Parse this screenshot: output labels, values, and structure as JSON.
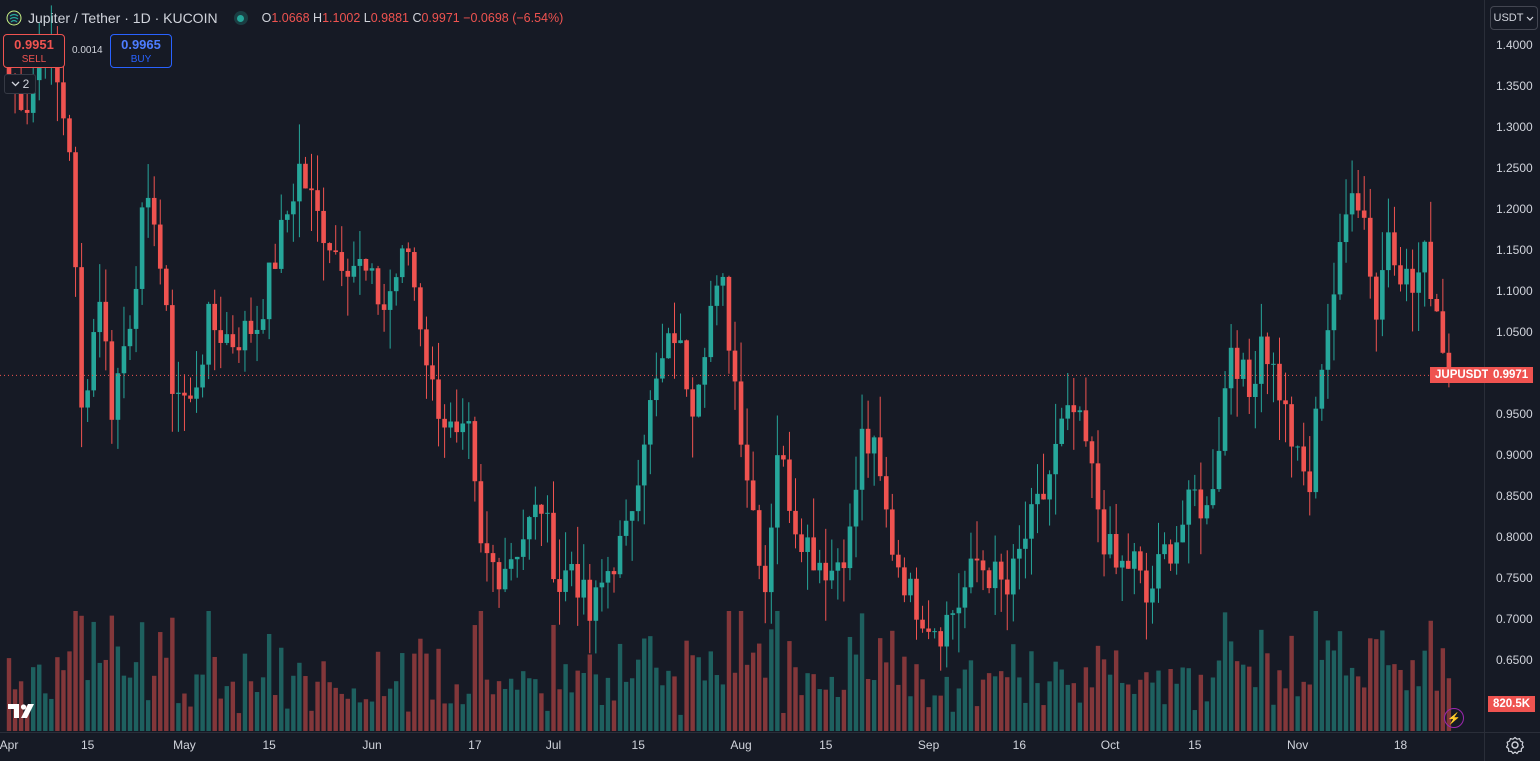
{
  "header": {
    "symbol_title": "Jupiter / Tether · 1D · KUCOIN",
    "o_label": "O",
    "o": "1.0668",
    "h_label": "H",
    "h": "1.1002",
    "l_label": "L",
    "l": "0.9881",
    "c_label": "C",
    "c": "0.9971",
    "change": "−0.0698 (−6.54%)",
    "status_color": "#26a69a"
  },
  "trade": {
    "sell_price": "0.9951",
    "sell_label": "SELL",
    "spread": "0.0014",
    "buy_price": "0.9965",
    "buy_label": "BUY"
  },
  "indicator_toggle": {
    "count": "2"
  },
  "currency": {
    "label": "USDT"
  },
  "price_tag": {
    "symbol": "JUPUSDT",
    "price": "0.9971"
  },
  "volume_tag": {
    "value": "820.5K"
  },
  "icons": {
    "logo": "tradingview-logo-icon",
    "bolt": "lightning-icon",
    "settings": "gear-icon",
    "chevron": "chevron-down-icon"
  },
  "colors": {
    "up": "#26a69a",
    "down": "#ef5350",
    "background": "#161a25"
  },
  "chart_data": {
    "type": "candlestick",
    "y_ticks": [
      "1.4000",
      "1.3500",
      "1.3000",
      "1.2500",
      "1.2000",
      "1.1500",
      "1.1000",
      "1.0500",
      "1.0000",
      "0.9500",
      "0.9000",
      "0.8500",
      "0.8000",
      "0.7500",
      "0.7000",
      "0.6500"
    ],
    "x_ticks": [
      {
        "label": "Apr",
        "i": 0
      },
      {
        "label": "15",
        "i": 13
      },
      {
        "label": "May",
        "i": 29
      },
      {
        "label": "15",
        "i": 43
      },
      {
        "label": "Jun",
        "i": 60
      },
      {
        "label": "17",
        "i": 77
      },
      {
        "label": "Jul",
        "i": 90
      },
      {
        "label": "15",
        "i": 104
      },
      {
        "label": "Aug",
        "i": 121
      },
      {
        "label": "15",
        "i": 135
      },
      {
        "label": "Sep",
        "i": 152
      },
      {
        "label": "16",
        "i": 167
      },
      {
        "label": "Oct",
        "i": 182
      },
      {
        "label": "15",
        "i": 196
      },
      {
        "label": "Nov",
        "i": 213
      },
      {
        "label": "18",
        "i": 230
      }
    ],
    "ylim": [
      0.6,
      1.42
    ],
    "last_price": 0.9971,
    "control_points": [
      [
        0,
        1.36
      ],
      [
        3,
        1.33
      ],
      [
        6,
        1.42
      ],
      [
        10,
        1.28
      ],
      [
        12,
        0.95
      ],
      [
        15,
        1.1
      ],
      [
        17,
        0.96
      ],
      [
        20,
        1.07
      ],
      [
        22,
        1.18
      ],
      [
        24,
        1.2
      ],
      [
        27,
        0.99
      ],
      [
        30,
        0.96
      ],
      [
        33,
        1.06
      ],
      [
        37,
        1.04
      ],
      [
        41,
        1.06
      ],
      [
        44,
        1.14
      ],
      [
        48,
        1.25
      ],
      [
        51,
        1.19
      ],
      [
        54,
        1.15
      ],
      [
        58,
        1.13
      ],
      [
        62,
        1.08
      ],
      [
        64,
        1.12
      ],
      [
        66,
        1.15
      ],
      [
        70,
        0.98
      ],
      [
        74,
        0.91
      ],
      [
        76,
        0.92
      ],
      [
        78,
        0.78
      ],
      [
        81,
        0.76
      ],
      [
        84,
        0.79
      ],
      [
        88,
        0.84
      ],
      [
        91,
        0.74
      ],
      [
        93,
        0.77
      ],
      [
        96,
        0.7
      ],
      [
        99,
        0.76
      ],
      [
        102,
        0.8
      ],
      [
        105,
        0.93
      ],
      [
        108,
        1.01
      ],
      [
        110,
        1.05
      ],
      [
        113,
        0.97
      ],
      [
        116,
        1.08
      ],
      [
        118,
        1.1
      ],
      [
        120,
        0.99
      ],
      [
        122,
        0.88
      ],
      [
        125,
        0.74
      ],
      [
        127,
        0.91
      ],
      [
        130,
        0.82
      ],
      [
        133,
        0.78
      ],
      [
        136,
        0.76
      ],
      [
        139,
        0.8
      ],
      [
        141,
        0.92
      ],
      [
        143,
        0.9
      ],
      [
        146,
        0.79
      ],
      [
        149,
        0.73
      ],
      [
        152,
        0.7
      ],
      [
        154,
        0.69
      ],
      [
        157,
        0.72
      ],
      [
        160,
        0.77
      ],
      [
        163,
        0.75
      ],
      [
        165,
        0.73
      ],
      [
        168,
        0.8
      ],
      [
        171,
        0.85
      ],
      [
        174,
        0.93
      ],
      [
        176,
        0.95
      ],
      [
        178,
        0.91
      ],
      [
        181,
        0.8
      ],
      [
        183,
        0.76
      ],
      [
        186,
        0.77
      ],
      [
        188,
        0.72
      ],
      [
        191,
        0.78
      ],
      [
        193,
        0.8
      ],
      [
        196,
        0.85
      ],
      [
        198,
        0.83
      ],
      [
        200,
        0.92
      ],
      [
        202,
        1.04
      ],
      [
        205,
        0.97
      ],
      [
        207,
        1.05
      ],
      [
        210,
        0.98
      ],
      [
        213,
        0.89
      ],
      [
        215,
        0.86
      ],
      [
        217,
        1.02
      ],
      [
        220,
        1.14
      ],
      [
        222,
        1.24
      ],
      [
        224,
        1.19
      ],
      [
        226,
        1.07
      ],
      [
        228,
        1.18
      ],
      [
        230,
        1.13
      ],
      [
        232,
        1.1
      ],
      [
        234,
        1.14
      ],
      [
        236,
        1.08
      ],
      [
        238,
        0.997
      ]
    ],
    "volume_ylim": [
      0,
      800000
    ],
    "last_volume": 820500
  }
}
